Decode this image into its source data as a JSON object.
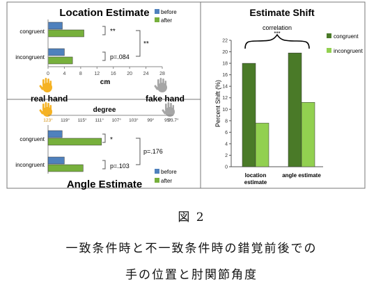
{
  "figure": {
    "label": "図 2",
    "caption_line1": "一致条件時と不一致条件時の錯覚前後での",
    "caption_line2": "手の位置と肘関節角度"
  },
  "colors": {
    "before": "#4f81bd",
    "after": "#77b03c",
    "congruent": "#4a7a28",
    "incongruent": "#92d050",
    "hand_real": "#f5b223",
    "hand_fake": "#a6a6a6"
  },
  "location_chart": {
    "title": "Location Estimate",
    "xlabel": "cm",
    "legend": {
      "before": "before",
      "after": "after"
    },
    "sig_congruent": "**",
    "sig_incongruent": "p=.084",
    "sig_between": "**",
    "hand_real_label": "real hand",
    "hand_fake_label": "fake hand"
  },
  "angle_chart": {
    "title": "Angle Estimate",
    "axis_title": "degree",
    "ticks": [
      "123°",
      "119°",
      "115°",
      "111°",
      "107°",
      "103°",
      "99°",
      "95°",
      "93.7°"
    ],
    "legend": {
      "before": "before",
      "after": "after"
    },
    "sig_congruent": "*",
    "sig_incongruent": "p=.103",
    "sig_between": "p=.176"
  },
  "shift_chart": {
    "title": "Estimate Shift",
    "ylabel": "Percent Shift (%)",
    "correlation_label": "correlation",
    "correlation_sig": "***",
    "legend": {
      "congruent": "congruent",
      "incongruent": "incongruent"
    },
    "category_labels": [
      [
        "location",
        "estimate"
      ],
      [
        "angle estimate"
      ]
    ]
  },
  "chart_data": [
    {
      "type": "bar",
      "title": "Location Estimate",
      "orientation": "horizontal",
      "categories": [
        "congruent",
        "incongruent"
      ],
      "xlabel": "cm",
      "xlim": [
        0,
        28
      ],
      "xticks": [
        0,
        4,
        8,
        12,
        16,
        20,
        24,
        28
      ],
      "series": [
        {
          "name": "before",
          "values": [
            3.5,
            4.0
          ]
        },
        {
          "name": "after",
          "values": [
            8.8,
            6.0
          ]
        }
      ],
      "legend": "top-right"
    },
    {
      "type": "bar",
      "title": "Angle Estimate",
      "orientation": "horizontal",
      "categories": [
        "congruent",
        "incongruent"
      ],
      "xlabel": "degree",
      "xlim": [
        123,
        93.7
      ],
      "series": [
        {
          "name": "before",
          "values": [
            119.7,
            119.2
          ]
        },
        {
          "name": "after",
          "values": [
            110.5,
            114.8
          ]
        }
      ],
      "legend": "bottom-right"
    },
    {
      "type": "bar",
      "title": "Estimate Shift",
      "categories": [
        "location estimate",
        "angle estimate"
      ],
      "ylabel": "Percent Shift (%)",
      "ylim": [
        0,
        22
      ],
      "yticks": [
        0,
        2,
        4,
        6,
        8,
        10,
        12,
        14,
        16,
        18,
        20,
        22
      ],
      "series": [
        {
          "name": "congruent",
          "values": [
            18.0,
            19.8
          ]
        },
        {
          "name": "incongruent",
          "values": [
            7.6,
            11.2
          ]
        }
      ],
      "legend": "right",
      "grid": false
    }
  ]
}
